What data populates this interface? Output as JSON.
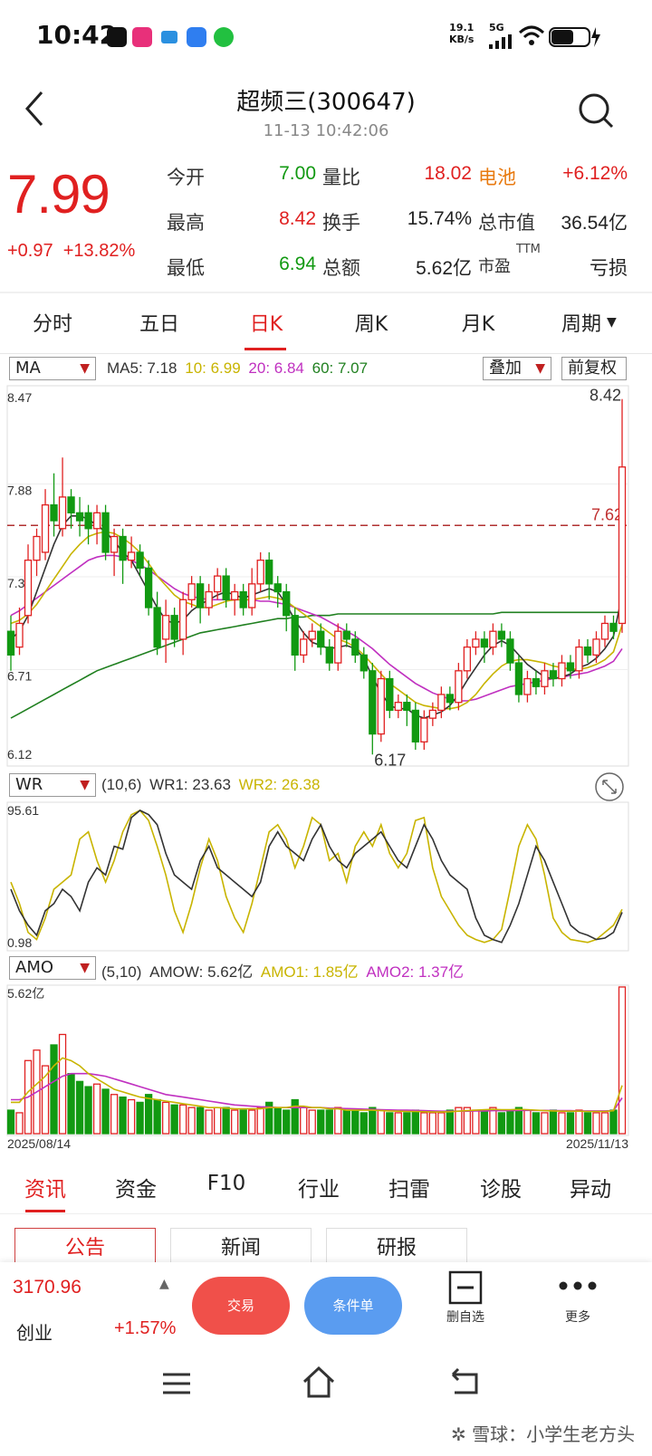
{
  "status": {
    "time": "10:42",
    "net_speed_value": "19.1",
    "net_speed_unit": "KB/s",
    "signal": "5G"
  },
  "header": {
    "title": "超频三(300647)",
    "time": "11-13 10:42:06"
  },
  "quote": {
    "price": "7.99",
    "change": "+0.97",
    "change_pct": "+13.82%",
    "rows": [
      [
        {
          "label": "今开",
          "value": "7.00",
          "color": "green"
        },
        {
          "label": "量比",
          "value": "18.02",
          "color": "red"
        },
        {
          "label": "电池",
          "value": "+6.12%",
          "color": "red",
          "label_color": "orange"
        }
      ],
      [
        {
          "label": "最高",
          "value": "8.42",
          "color": "red"
        },
        {
          "label": "换手",
          "value": "15.74%",
          "color": "dark"
        },
        {
          "label": "总市值",
          "value": "36.54亿",
          "color": "dark"
        }
      ],
      [
        {
          "label": "最低",
          "value": "6.94",
          "color": "green"
        },
        {
          "label": "总额",
          "value": "5.62亿",
          "color": "dark"
        },
        {
          "label": "市盈",
          "value": "亏损",
          "color": "dark",
          "sup": "TTM"
        }
      ]
    ]
  },
  "period_tabs": [
    "分时",
    "五日",
    "日K",
    "周K",
    "月K",
    "周期"
  ],
  "chart_controls": {
    "ma_select": "MA",
    "overlay": "叠加",
    "adjust": "前复权",
    "wr_select": "WR",
    "amo_select": "AMO"
  },
  "ma_legend": {
    "ma5": "MA5: 7.18",
    "ma10": "10: 6.99",
    "ma20": "20: 6.84",
    "ma60": "60: 7.07"
  },
  "wr_legend": {
    "params": "(10,6)",
    "wr1": "WR1: 23.63",
    "wr2": "WR2: 26.38"
  },
  "amo_legend": {
    "params": "(5,10)",
    "amow": "AMOW: 5.62亿",
    "amo1": "AMO1: 1.85亿",
    "amo2": "AMO2: 1.37亿"
  },
  "colors": {
    "up": "#e02020",
    "down": "#119911",
    "ma5": "#333333",
    "ma10": "#c8b400",
    "ma20": "#c030c0",
    "ma60": "#208020",
    "pill_trade": "#f0504a",
    "pill_cond": "#5a9cf0"
  },
  "chart_data": {
    "type": "candlestick",
    "y_ticks": [
      "8.47",
      "7.88",
      "7.30",
      "6.71",
      "6.12"
    ],
    "ylim": [
      6.12,
      8.47
    ],
    "labels": {
      "high": "8.42",
      "low": "6.17",
      "ref": "7.62"
    },
    "ref_line": 7.62,
    "date_start": "2025/08/14",
    "date_end": "2025/11/13",
    "candles": [
      [
        6.95,
        6.8,
        7.05,
        6.7
      ],
      [
        6.85,
        7.0,
        7.1,
        6.8
      ],
      [
        7.05,
        7.4,
        7.5,
        7.0
      ],
      [
        7.4,
        7.55,
        7.6,
        7.3
      ],
      [
        7.45,
        7.75,
        7.85,
        7.4
      ],
      [
        7.75,
        7.65,
        7.95,
        7.55
      ],
      [
        7.6,
        7.8,
        8.05,
        7.55
      ],
      [
        7.8,
        7.7,
        7.85,
        7.6
      ],
      [
        7.7,
        7.65,
        7.8,
        7.55
      ],
      [
        7.7,
        7.6,
        7.75,
        7.5
      ],
      [
        7.6,
        7.7,
        7.75,
        7.5
      ],
      [
        7.7,
        7.45,
        7.75,
        7.4
      ],
      [
        7.45,
        7.55,
        7.6,
        7.3
      ],
      [
        7.55,
        7.4,
        7.6,
        7.25
      ],
      [
        7.4,
        7.45,
        7.55,
        7.35
      ],
      [
        7.45,
        7.35,
        7.5,
        7.3
      ],
      [
        7.35,
        7.1,
        7.4,
        7.05
      ],
      [
        7.1,
        6.85,
        7.2,
        6.8
      ],
      [
        6.9,
        7.05,
        7.15,
        6.75
      ],
      [
        7.05,
        6.9,
        7.1,
        6.85
      ],
      [
        6.9,
        7.15,
        7.2,
        6.8
      ],
      [
        7.15,
        7.25,
        7.3,
        7.1
      ],
      [
        7.25,
        7.1,
        7.3,
        7.0
      ],
      [
        7.1,
        7.2,
        7.25,
        7.05
      ],
      [
        7.2,
        7.3,
        7.35,
        7.15
      ],
      [
        7.3,
        7.15,
        7.35,
        7.1
      ],
      [
        7.15,
        7.2,
        7.25,
        7.05
      ],
      [
        7.2,
        7.1,
        7.25,
        7.05
      ],
      [
        7.1,
        7.25,
        7.35,
        7.05
      ],
      [
        7.25,
        7.4,
        7.45,
        7.2
      ],
      [
        7.4,
        7.25,
        7.45,
        7.15
      ],
      [
        7.25,
        7.2,
        7.3,
        7.1
      ],
      [
        7.2,
        7.05,
        7.25,
        6.95
      ],
      [
        7.05,
        6.8,
        7.1,
        6.7
      ],
      [
        6.8,
        6.9,
        6.95,
        6.75
      ],
      [
        6.9,
        6.95,
        7.0,
        6.85
      ],
      [
        6.95,
        6.85,
        7.0,
        6.8
      ],
      [
        6.85,
        6.75,
        6.9,
        6.7
      ],
      [
        6.75,
        6.95,
        7.0,
        6.7
      ],
      [
        6.95,
        6.9,
        7.0,
        6.85
      ],
      [
        6.9,
        6.8,
        6.95,
        6.75
      ],
      [
        6.8,
        6.7,
        6.85,
        6.65
      ],
      [
        6.7,
        6.3,
        6.75,
        6.17
      ],
      [
        6.3,
        6.65,
        6.7,
        6.25
      ],
      [
        6.65,
        6.45,
        6.7,
        6.4
      ],
      [
        6.45,
        6.5,
        6.55,
        6.4
      ],
      [
        6.5,
        6.45,
        6.55,
        6.35
      ],
      [
        6.45,
        6.25,
        6.5,
        6.2
      ],
      [
        6.25,
        6.4,
        6.45,
        6.2
      ],
      [
        6.4,
        6.45,
        6.5,
        6.35
      ],
      [
        6.45,
        6.55,
        6.6,
        6.4
      ],
      [
        6.55,
        6.5,
        6.6,
        6.45
      ],
      [
        6.5,
        6.7,
        6.75,
        6.45
      ],
      [
        6.7,
        6.85,
        6.9,
        6.65
      ],
      [
        6.85,
        6.9,
        6.95,
        6.8
      ],
      [
        6.9,
        6.85,
        6.95,
        6.75
      ],
      [
        6.85,
        6.95,
        7.0,
        6.8
      ],
      [
        6.95,
        6.9,
        7.0,
        6.85
      ],
      [
        6.9,
        6.75,
        6.95,
        6.7
      ],
      [
        6.75,
        6.55,
        6.8,
        6.5
      ],
      [
        6.55,
        6.65,
        6.7,
        6.5
      ],
      [
        6.65,
        6.6,
        6.7,
        6.55
      ],
      [
        6.6,
        6.7,
        6.75,
        6.55
      ],
      [
        6.7,
        6.65,
        6.75,
        6.6
      ],
      [
        6.65,
        6.75,
        6.8,
        6.6
      ],
      [
        6.75,
        6.7,
        6.8,
        6.65
      ],
      [
        6.7,
        6.85,
        6.9,
        6.65
      ],
      [
        6.85,
        6.8,
        6.9,
        6.75
      ],
      [
        6.8,
        6.9,
        6.95,
        6.75
      ],
      [
        6.9,
        7.0,
        7.05,
        6.85
      ],
      [
        7.0,
        6.95,
        7.05,
        6.9
      ],
      [
        7.0,
        7.99,
        8.42,
        6.94
      ]
    ],
    "ma5": [
      6.9,
      6.95,
      7.05,
      7.2,
      7.35,
      7.5,
      7.62,
      7.68,
      7.68,
      7.66,
      7.62,
      7.58,
      7.52,
      7.45,
      7.4,
      7.3,
      7.2,
      7.1,
      7.02,
      7.0,
      7.02,
      7.08,
      7.12,
      7.15,
      7.18,
      7.2,
      7.18,
      7.16,
      7.18,
      7.2,
      7.22,
      7.2,
      7.12,
      7.02,
      6.94,
      6.88,
      6.86,
      6.84,
      6.85,
      6.86,
      6.84,
      6.78,
      6.66,
      6.56,
      6.48,
      6.46,
      6.46,
      6.42,
      6.4,
      6.42,
      6.44,
      6.48,
      6.55,
      6.64,
      6.72,
      6.8,
      6.86,
      6.89,
      6.86,
      6.8,
      6.74,
      6.7,
      6.66,
      6.65,
      6.66,
      6.68,
      6.72,
      6.74,
      6.78,
      6.84,
      6.92,
      7.18
    ],
    "ma10": [
      7.0,
      7.02,
      7.06,
      7.12,
      7.2,
      7.28,
      7.36,
      7.44,
      7.5,
      7.55,
      7.57,
      7.58,
      7.57,
      7.54,
      7.5,
      7.45,
      7.38,
      7.3,
      7.24,
      7.18,
      7.14,
      7.12,
      7.1,
      7.1,
      7.12,
      7.14,
      7.15,
      7.15,
      7.15,
      7.16,
      7.17,
      7.16,
      7.14,
      7.1,
      7.06,
      7.02,
      6.98,
      6.94,
      6.9,
      6.88,
      6.85,
      6.8,
      6.74,
      6.68,
      6.62,
      6.58,
      6.54,
      6.5,
      6.48,
      6.47,
      6.46,
      6.46,
      6.47,
      6.5,
      6.55,
      6.62,
      6.68,
      6.73,
      6.76,
      6.77,
      6.77,
      6.76,
      6.75,
      6.73,
      6.72,
      6.71,
      6.71,
      6.72,
      6.74,
      6.77,
      6.82,
      6.99
    ],
    "ma20": [
      7.05,
      7.08,
      7.12,
      7.16,
      7.2,
      7.24,
      7.28,
      7.32,
      7.36,
      7.4,
      7.42,
      7.43,
      7.43,
      7.42,
      7.4,
      7.37,
      7.34,
      7.3,
      7.26,
      7.22,
      7.19,
      7.17,
      7.16,
      7.15,
      7.15,
      7.15,
      7.15,
      7.15,
      7.15,
      7.14,
      7.14,
      7.13,
      7.12,
      7.1,
      7.08,
      7.06,
      7.04,
      7.01,
      6.98,
      6.95,
      6.92,
      6.88,
      6.84,
      6.79,
      6.74,
      6.7,
      6.66,
      6.62,
      6.59,
      6.56,
      6.54,
      6.52,
      6.51,
      6.51,
      6.52,
      6.54,
      6.56,
      6.58,
      6.6,
      6.61,
      6.62,
      6.63,
      6.64,
      6.65,
      6.66,
      6.67,
      6.68,
      6.69,
      6.71,
      6.73,
      6.76,
      6.84
    ],
    "ma60": [
      6.4,
      6.43,
      6.46,
      6.49,
      6.52,
      6.55,
      6.58,
      6.61,
      6.64,
      6.67,
      6.7,
      6.72,
      6.74,
      6.76,
      6.78,
      6.8,
      6.82,
      6.84,
      6.86,
      6.88,
      6.9,
      6.92,
      6.94,
      6.95,
      6.96,
      6.97,
      6.98,
      6.99,
      7.0,
      7.01,
      7.02,
      7.03,
      7.03,
      7.04,
      7.04,
      7.05,
      7.05,
      7.05,
      7.06,
      7.06,
      7.06,
      7.06,
      7.06,
      7.06,
      7.06,
      7.06,
      7.06,
      7.06,
      7.06,
      7.06,
      7.06,
      7.06,
      7.06,
      7.06,
      7.06,
      7.06,
      7.06,
      7.07,
      7.07,
      7.07,
      7.07,
      7.07,
      7.07,
      7.07,
      7.07,
      7.07,
      7.07,
      7.07,
      7.07,
      7.07,
      7.07,
      7.07
    ],
    "wr": {
      "y_ticks": [
        "95.61",
        "0.98"
      ],
      "ylim": [
        0.98,
        95.61
      ],
      "wr1": [
        40,
        25,
        15,
        8,
        25,
        30,
        40,
        35,
        25,
        45,
        55,
        50,
        70,
        68,
        90,
        95,
        92,
        85,
        65,
        50,
        45,
        40,
        60,
        70,
        55,
        50,
        45,
        40,
        35,
        45,
        70,
        80,
        70,
        65,
        60,
        75,
        85,
        70,
        60,
        55,
        65,
        70,
        75,
        80,
        70,
        60,
        55,
        70,
        85,
        75,
        60,
        50,
        45,
        40,
        20,
        8,
        5,
        3,
        15,
        30,
        50,
        70,
        60,
        45,
        30,
        15,
        10,
        8,
        5,
        6,
        10,
        24
      ],
      "wr2": [
        45,
        30,
        10,
        5,
        20,
        40,
        45,
        50,
        75,
        80,
        60,
        45,
        60,
        80,
        92,
        95,
        88,
        70,
        50,
        25,
        10,
        30,
        55,
        75,
        60,
        35,
        20,
        10,
        30,
        55,
        80,
        85,
        75,
        55,
        70,
        90,
        85,
        60,
        65,
        45,
        70,
        80,
        70,
        85,
        65,
        55,
        65,
        88,
        90,
        55,
        35,
        25,
        15,
        8,
        5,
        3,
        5,
        12,
        40,
        70,
        85,
        75,
        50,
        20,
        10,
        5,
        4,
        3,
        5,
        10,
        15,
        26
      ]
    },
    "amo": {
      "y_tick_top": "5.62亿",
      "ylim": [
        0,
        5.62
      ],
      "values": [
        0.9,
        0.8,
        2.8,
        3.2,
        2.6,
        3.4,
        3.8,
        2.3,
        2.0,
        1.8,
        1.9,
        1.7,
        1.5,
        1.4,
        1.3,
        1.2,
        1.5,
        1.3,
        1.2,
        1.1,
        1.1,
        1.0,
        1.0,
        0.9,
        1.0,
        1.0,
        0.9,
        0.9,
        0.9,
        1.0,
        1.2,
        1.0,
        0.9,
        1.3,
        1.0,
        0.9,
        0.9,
        0.9,
        1.0,
        0.9,
        0.9,
        0.8,
        1.0,
        0.9,
        0.8,
        0.8,
        0.8,
        0.9,
        0.8,
        0.8,
        0.8,
        0.9,
        1.0,
        1.0,
        0.9,
        0.9,
        1.0,
        0.8,
        0.9,
        1.0,
        0.9,
        0.8,
        0.8,
        0.9,
        0.8,
        0.8,
        0.9,
        0.8,
        0.8,
        0.8,
        0.9,
        5.62
      ],
      "amo1": [
        1.2,
        1.2,
        1.6,
        1.9,
        2.2,
        2.6,
        2.9,
        2.8,
        2.6,
        2.3,
        2.1,
        1.9,
        1.7,
        1.6,
        1.5,
        1.4,
        1.35,
        1.3,
        1.25,
        1.2,
        1.15,
        1.1,
        1.05,
        1.0,
        1.0,
        0.98,
        0.95,
        0.95,
        0.95,
        0.95,
        1.0,
        1.0,
        1.0,
        1.05,
        1.05,
        1.0,
        1.0,
        0.95,
        0.95,
        0.9,
        0.9,
        0.9,
        0.9,
        0.88,
        0.87,
        0.86,
        0.85,
        0.85,
        0.84,
        0.83,
        0.83,
        0.84,
        0.86,
        0.88,
        0.9,
        0.92,
        0.93,
        0.92,
        0.92,
        0.93,
        0.92,
        0.9,
        0.88,
        0.87,
        0.86,
        0.86,
        0.86,
        0.85,
        0.85,
        0.85,
        0.88,
        1.85
      ],
      "amo2": [
        1.3,
        1.3,
        1.4,
        1.6,
        1.8,
        2.0,
        2.2,
        2.3,
        2.3,
        2.3,
        2.25,
        2.2,
        2.1,
        2.0,
        1.9,
        1.8,
        1.7,
        1.6,
        1.5,
        1.45,
        1.4,
        1.35,
        1.3,
        1.25,
        1.2,
        1.15,
        1.1,
        1.08,
        1.05,
        1.03,
        1.02,
        1.0,
        1.0,
        1.0,
        1.0,
        1.0,
        1.0,
        0.98,
        0.97,
        0.96,
        0.95,
        0.94,
        0.93,
        0.92,
        0.91,
        0.9,
        0.9,
        0.89,
        0.88,
        0.87,
        0.86,
        0.86,
        0.86,
        0.86,
        0.87,
        0.87,
        0.88,
        0.88,
        0.88,
        0.89,
        0.89,
        0.89,
        0.89,
        0.88,
        0.88,
        0.88,
        0.87,
        0.87,
        0.87,
        0.87,
        0.88,
        1.37
      ]
    }
  },
  "bottom_tabs": [
    "资讯",
    "资金",
    "F10",
    "行业",
    "扫雷",
    "诊股",
    "异动"
  ],
  "sub_tabs": [
    "公告",
    "新闻",
    "研报"
  ],
  "bottom_bar": {
    "index_value": "3170.96",
    "index_name": "创业",
    "index_change": "+1.57%",
    "trade": "交易",
    "conditional": "条件单",
    "remove_watch": "删自选",
    "more": "更多"
  },
  "watermark": "雪球：小学生老方头"
}
